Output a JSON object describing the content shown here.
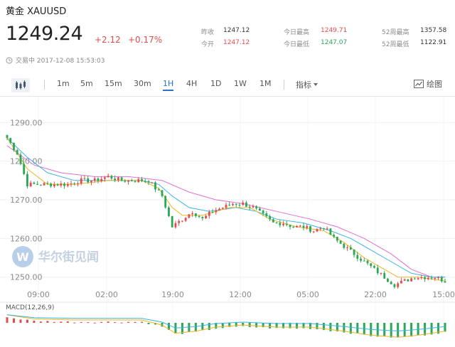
{
  "header": {
    "title": "黄金 XAUUSD",
    "price": "1249.24",
    "change": "+2.12",
    "change_pct": "+0.17%",
    "stats": [
      {
        "label": "昨收",
        "value": "1247.12",
        "tone": "neutral"
      },
      {
        "label": "今开",
        "value": "1247.12",
        "tone": "up"
      },
      {
        "label": "今日最高",
        "value": "1249.71",
        "tone": "up"
      },
      {
        "label": "今日最低",
        "value": "1247.07",
        "tone": "down"
      },
      {
        "label": "52周最高",
        "value": "1357.58",
        "tone": "neutral"
      },
      {
        "label": "52周最低",
        "value": "1122.91",
        "tone": "neutral"
      }
    ],
    "status_text": "交易中 2017-12-08 15:53:03"
  },
  "toolbar": {
    "timeframes": [
      "1m",
      "5m",
      "15m",
      "30m",
      "1H",
      "4H",
      "1D",
      "1W",
      "1M"
    ],
    "active": "1H",
    "indicator_label": "指标",
    "draw_label": "绘图"
  },
  "watermark": {
    "text": "华尔街见闻",
    "logo_letter": "W"
  },
  "colors": {
    "up": "#e34d4d",
    "down": "#2aa856",
    "accent": "#2b6fd1",
    "ma_short": "#f0b323",
    "ma_mid": "#3cb2e6",
    "ma_long": "#e06fd0"
  },
  "chart_data": {
    "type": "candlestick",
    "y_ticks": [
      "1290.00",
      "1280.00",
      "1270.00",
      "1260.00",
      "1250.00"
    ],
    "ylim": [
      1247,
      1293
    ],
    "x_ticks": [
      "09:00",
      "02:00",
      "19:00",
      "12:00",
      "05:00",
      "22:00",
      "15:00"
    ],
    "macd_label": "MACD(12,26,9)",
    "anchors": [
      [
        0,
        1286
      ],
      [
        3,
        1282
      ],
      [
        6,
        1274
      ],
      [
        10,
        1274
      ],
      [
        14,
        1274
      ],
      [
        18,
        1274
      ],
      [
        22,
        1275
      ],
      [
        26,
        1275
      ],
      [
        30,
        1276
      ],
      [
        34,
        1275
      ],
      [
        38,
        1275
      ],
      [
        42,
        1275
      ],
      [
        46,
        1271
      ],
      [
        49,
        1263
      ],
      [
        52,
        1265
      ],
      [
        55,
        1267
      ],
      [
        58,
        1265
      ],
      [
        61,
        1267
      ],
      [
        64,
        1268
      ],
      [
        67,
        1269
      ],
      [
        70,
        1269
      ],
      [
        73,
        1268
      ],
      [
        76,
        1266
      ],
      [
        79,
        1264
      ],
      [
        82,
        1264
      ],
      [
        85,
        1263
      ],
      [
        88,
        1263
      ],
      [
        91,
        1262
      ],
      [
        94,
        1263
      ],
      [
        97,
        1260
      ],
      [
        100,
        1258
      ],
      [
        103,
        1256
      ],
      [
        106,
        1254
      ],
      [
        109,
        1252
      ],
      [
        112,
        1250
      ],
      [
        115,
        1248
      ],
      [
        118,
        1249
      ],
      [
        121,
        1250
      ],
      [
        124,
        1250
      ],
      [
        127,
        1250
      ],
      [
        130,
        1249
      ]
    ],
    "ma_short": [
      [
        0,
        1286
      ],
      [
        6,
        1278
      ],
      [
        12,
        1274
      ],
      [
        20,
        1274
      ],
      [
        30,
        1275
      ],
      [
        40,
        1275
      ],
      [
        45,
        1273
      ],
      [
        49,
        1268
      ],
      [
        52,
        1266
      ],
      [
        58,
        1266
      ],
      [
        66,
        1268
      ],
      [
        72,
        1268
      ],
      [
        78,
        1265
      ],
      [
        86,
        1263
      ],
      [
        94,
        1262
      ],
      [
        100,
        1259
      ],
      [
        106,
        1255
      ],
      [
        112,
        1252
      ],
      [
        116,
        1250
      ],
      [
        122,
        1250
      ],
      [
        130,
        1249
      ]
    ],
    "ma_mid": [
      [
        0,
        1286
      ],
      [
        6,
        1281
      ],
      [
        12,
        1277
      ],
      [
        20,
        1275
      ],
      [
        30,
        1275
      ],
      [
        40,
        1275
      ],
      [
        45,
        1274
      ],
      [
        49,
        1271
      ],
      [
        54,
        1268
      ],
      [
        60,
        1267
      ],
      [
        68,
        1268
      ],
      [
        74,
        1267
      ],
      [
        80,
        1265
      ],
      [
        88,
        1264
      ],
      [
        96,
        1262
      ],
      [
        102,
        1260
      ],
      [
        108,
        1257
      ],
      [
        114,
        1254
      ],
      [
        120,
        1251
      ],
      [
        126,
        1250
      ],
      [
        130,
        1250
      ]
    ],
    "ma_long": [
      [
        0,
        1284
      ],
      [
        8,
        1279
      ],
      [
        16,
        1277
      ],
      [
        26,
        1276
      ],
      [
        36,
        1276
      ],
      [
        46,
        1275
      ],
      [
        54,
        1272
      ],
      [
        62,
        1270
      ],
      [
        70,
        1269
      ],
      [
        80,
        1267
      ],
      [
        90,
        1265
      ],
      [
        98,
        1263
      ],
      [
        106,
        1260
      ],
      [
        114,
        1256
      ],
      [
        120,
        1252
      ],
      [
        126,
        1250
      ],
      [
        130,
        1250
      ]
    ],
    "macd_hist": [
      [
        0,
        0.3
      ],
      [
        8,
        0.1
      ],
      [
        20,
        0.05
      ],
      [
        40,
        0.05
      ],
      [
        46,
        -0.2
      ],
      [
        50,
        -0.6
      ],
      [
        56,
        -0.5
      ],
      [
        62,
        -0.3
      ],
      [
        70,
        -0.2
      ],
      [
        80,
        -0.3
      ],
      [
        90,
        -0.3
      ],
      [
        100,
        -0.5
      ],
      [
        108,
        -0.7
      ],
      [
        116,
        -0.8
      ],
      [
        122,
        -0.7
      ],
      [
        130,
        -0.5
      ]
    ]
  }
}
